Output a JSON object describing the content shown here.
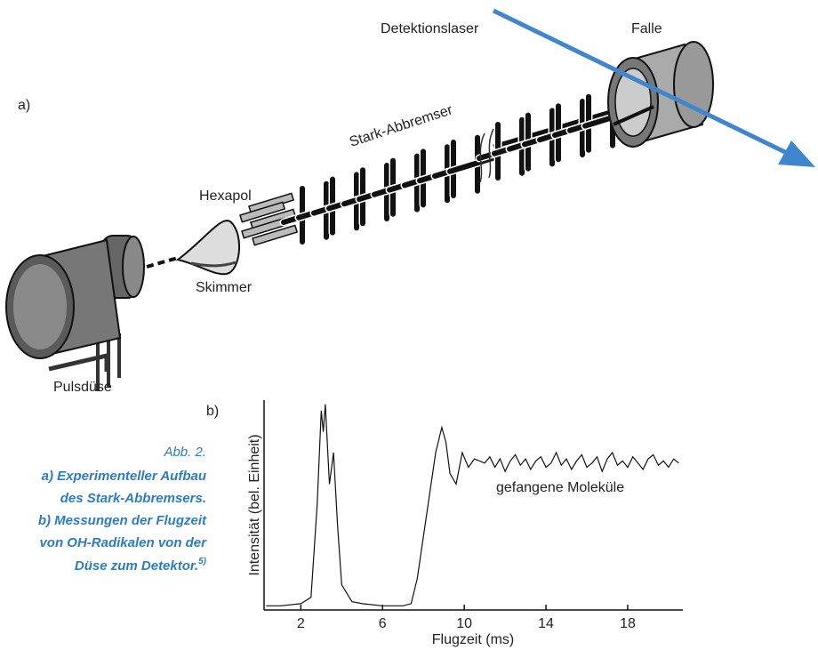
{
  "figure": {
    "panel_a": "a)",
    "panel_b": "b)",
    "laser": "Detektionslaser",
    "trap": "Falle",
    "decelerator": "Stark-Abbremser",
    "hexapole": "Hexapol",
    "skimmer": "Skimmer",
    "valve": "Pulsdüse"
  },
  "caption": {
    "label": "Abb. 2.",
    "lines": [
      "a) Experimenteller Aufbau",
      "des Stark-Abbremsers.",
      "b) Messungen der Flugzeit",
      "von OH-Radikalen von der",
      "Düse zum Detektor."
    ],
    "reference": "5)"
  },
  "chart_data": {
    "type": "line",
    "xlabel": "Flugzeit (ms)",
    "ylabel": "Intensität (bel. Einheit)",
    "annotation": "gefangene Moleküle",
    "xlim": [
      0.2,
      20.7
    ],
    "xticks": [
      2,
      6,
      10,
      14,
      18
    ],
    "ylim": [
      0,
      1
    ],
    "color": "#111111",
    "x": [
      0.3,
      1,
      2,
      2.5,
      2.8,
      3.0,
      3.1,
      3.2,
      3.4,
      3.6,
      3.8,
      4.0,
      4.5,
      5,
      6,
      7,
      7.4,
      7.7,
      8,
      8.3,
      8.6,
      8.9,
      9.1,
      9.3,
      9.6,
      9.9,
      10.2,
      10.5,
      11,
      11.25,
      11.5,
      11.75,
      12,
      12.25,
      12.5,
      12.75,
      13,
      13.25,
      13.5,
      13.75,
      14,
      14.25,
      14.5,
      14.75,
      15,
      15.25,
      15.5,
      15.75,
      16,
      16.25,
      16.5,
      16.75,
      17,
      17.25,
      17.5,
      17.75,
      18,
      18.25,
      18.5,
      18.75,
      19,
      19.25,
      19.5,
      19.75,
      20,
      20.25,
      20.5
    ],
    "values": [
      0.02,
      0.02,
      0.03,
      0.06,
      0.5,
      0.95,
      0.85,
      0.98,
      0.6,
      0.75,
      0.4,
      0.12,
      0.04,
      0.03,
      0.02,
      0.02,
      0.03,
      0.15,
      0.35,
      0.55,
      0.75,
      0.87,
      0.8,
      0.65,
      0.6,
      0.75,
      0.68,
      0.72,
      0.7,
      0.73,
      0.68,
      0.72,
      0.66,
      0.71,
      0.74,
      0.69,
      0.72,
      0.67,
      0.71,
      0.73,
      0.68,
      0.7,
      0.75,
      0.69,
      0.72,
      0.67,
      0.71,
      0.74,
      0.68,
      0.7,
      0.73,
      0.66,
      0.72,
      0.75,
      0.69,
      0.71,
      0.68,
      0.73,
      0.7,
      0.67,
      0.72,
      0.74,
      0.69,
      0.71,
      0.68,
      0.72,
      0.7
    ]
  }
}
